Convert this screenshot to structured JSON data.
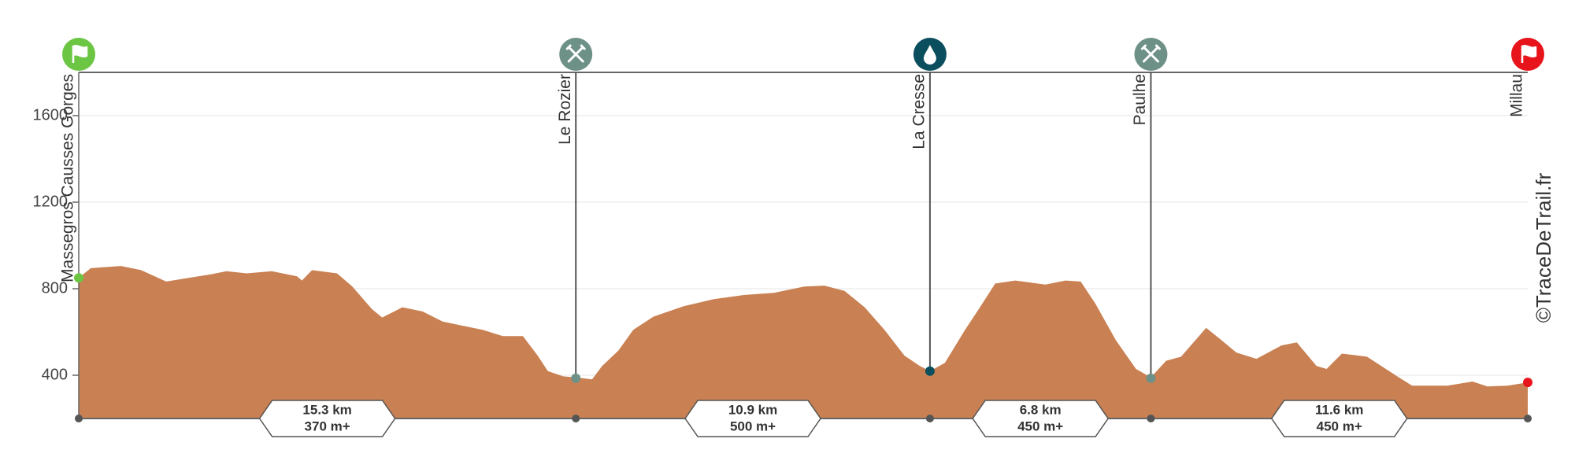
{
  "chart_data": {
    "type": "area",
    "color": "#c98052",
    "x": [
      0,
      0.37,
      1.3,
      1.92,
      2.69,
      3.31,
      4.08,
      4.55,
      5.17,
      5.94,
      6.72,
      6.87,
      7.18,
      7.95,
      8.42,
      9.03,
      9.34,
      9.96,
      10.58,
      11.2,
      11.81,
      12.43,
      13.05,
      13.67,
      14.13,
      14.44,
      14.91,
      15.3,
      15.8,
      16.11,
      16.61,
      17.07,
      17.69,
      18.62,
      19.55,
      20.47,
      21.4,
      22.33,
      22.95,
      23.57,
      24.19,
      24.8,
      25.42,
      25.89,
      26.2,
      26.66,
      27.28,
      27.74,
      28.21,
      28.83,
      29.75,
      30.37,
      30.84,
      31.3,
      31.92,
      32.54,
      33.0,
      33.47,
      33.93,
      34.7,
      35.17,
      35.63,
      36.25,
      37.02,
      37.49,
      38.1,
      38.41,
      38.88,
      39.65,
      40.58,
      41.04,
      42.13,
      42.9,
      43.36,
      43.98,
      44.6
    ],
    "values": [
      850,
      895,
      905,
      886,
      833,
      848,
      867,
      881,
      871,
      881,
      857,
      838,
      886,
      871,
      810,
      705,
      667,
      714,
      695,
      648,
      629,
      610,
      581,
      581,
      490,
      419,
      395,
      390,
      381,
      443,
      514,
      610,
      671,
      719,
      752,
      771,
      781,
      810,
      814,
      790,
      714,
      610,
      490,
      443,
      419,
      457,
      610,
      714,
      824,
      838,
      819,
      838,
      833,
      729,
      562,
      429,
      390,
      467,
      486,
      619,
      562,
      505,
      476,
      538,
      552,
      443,
      429,
      500,
      486,
      395,
      352,
      352,
      371,
      348,
      352,
      367
    ],
    "xlim": [
      0,
      44.6
    ],
    "ylim": [
      200,
      1800
    ],
    "yticks": [
      400,
      800,
      1200,
      1600
    ],
    "grid": true,
    "waypoints": [
      {
        "name": "Massegros Causses Gorges",
        "km": 0,
        "elevation": 850,
        "icon": "start",
        "color": "#6cc644"
      },
      {
        "name": "Le Rozier",
        "km": 15.3,
        "elevation": 386,
        "icon": "food",
        "color": "#6e9187"
      },
      {
        "name": "La Cresse",
        "km": 26.2,
        "elevation": 419,
        "icon": "water",
        "color": "#0b4f5e"
      },
      {
        "name": "Paulhe",
        "km": 33.0,
        "elevation": 386,
        "icon": "food",
        "color": "#6e9187"
      },
      {
        "name": "Millau",
        "km": 44.6,
        "elevation": 367,
        "icon": "finish",
        "color": "#e8141b"
      }
    ],
    "segments": [
      {
        "distance": "15.3 km",
        "gain": "370 m+"
      },
      {
        "distance": "10.9 km",
        "gain": "500 m+"
      },
      {
        "distance": "6.8 km",
        "gain": "450 m+"
      },
      {
        "distance": "11.6 km",
        "gain": "450 m+"
      }
    ],
    "watermark": "©TraceDeTrail.fr"
  }
}
